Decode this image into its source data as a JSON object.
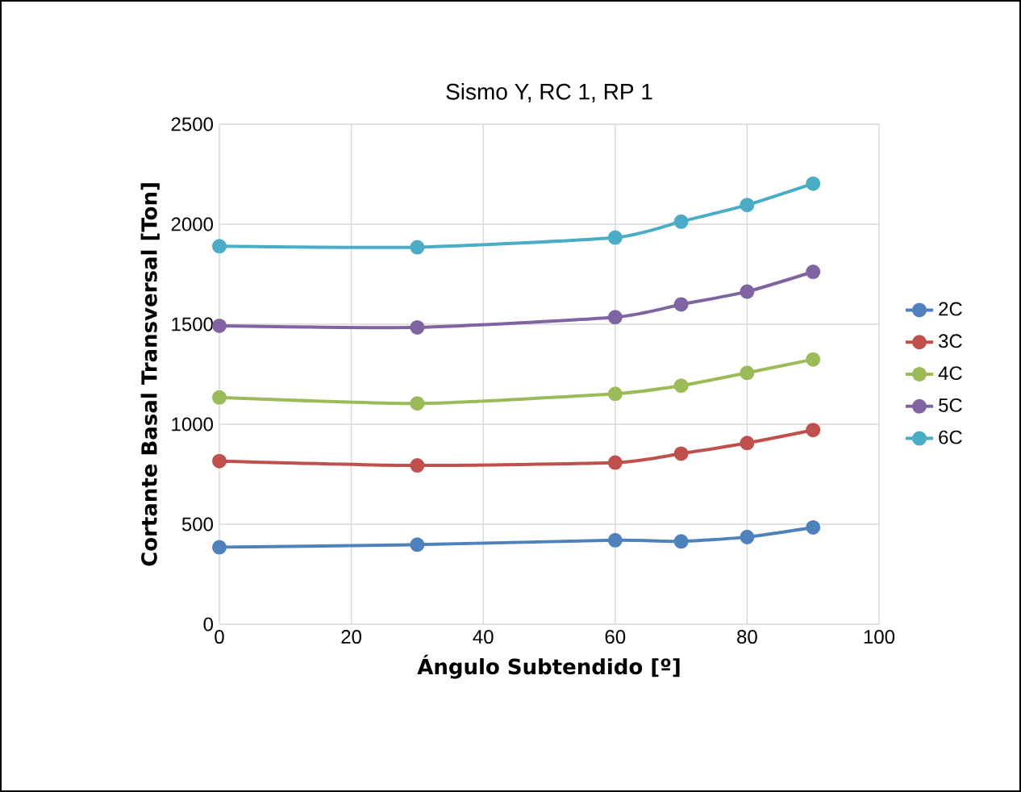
{
  "chart_data": {
    "type": "line",
    "title": "Sismo Y, RC 1, RP 1",
    "xlabel": "Ángulo Subtendido [º]",
    "ylabel": "Cortante Basal Transversal [Ton]",
    "x": [
      0,
      30,
      60,
      70,
      80,
      90
    ],
    "series": [
      {
        "name": "2C",
        "color": "#4f81bd",
        "values": [
          385,
          398,
          420,
          414,
          436,
          484
        ]
      },
      {
        "name": "3C",
        "color": "#c0504d",
        "values": [
          816,
          794,
          808,
          853,
          906,
          971
        ]
      },
      {
        "name": "4C",
        "color": "#9bbb59",
        "values": [
          1134,
          1104,
          1152,
          1193,
          1257,
          1324
        ]
      },
      {
        "name": "5C",
        "color": "#8064a2",
        "values": [
          1492,
          1484,
          1535,
          1599,
          1663,
          1762
        ]
      },
      {
        "name": "6C",
        "color": "#4bacc6",
        "values": [
          1890,
          1885,
          1933,
          2013,
          2096,
          2203
        ]
      }
    ],
    "xlim": [
      0,
      100
    ],
    "xticks": [
      0,
      20,
      40,
      60,
      80,
      100
    ],
    "ylim": [
      0,
      2500
    ],
    "yticks": [
      0,
      500,
      1000,
      1500,
      2000,
      2500
    ],
    "grid": true,
    "legend": "right",
    "marker": "circle",
    "line_style": "solid"
  }
}
